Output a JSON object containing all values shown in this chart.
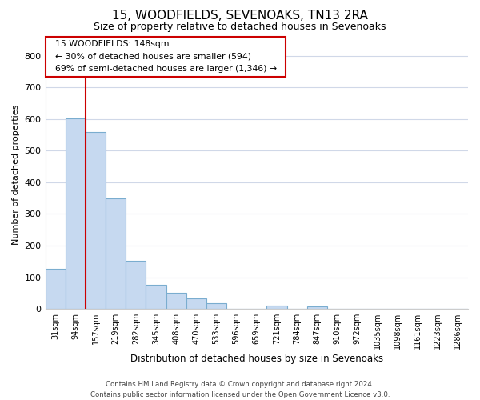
{
  "title": "15, WOODFIELDS, SEVENOAKS, TN13 2RA",
  "subtitle": "Size of property relative to detached houses in Sevenoaks",
  "xlabel": "Distribution of detached houses by size in Sevenoaks",
  "ylabel": "Number of detached properties",
  "bar_labels": [
    "31sqm",
    "94sqm",
    "157sqm",
    "219sqm",
    "282sqm",
    "345sqm",
    "408sqm",
    "470sqm",
    "533sqm",
    "596sqm",
    "659sqm",
    "721sqm",
    "784sqm",
    "847sqm",
    "910sqm",
    "972sqm",
    "1035sqm",
    "1098sqm",
    "1161sqm",
    "1223sqm",
    "1286sqm"
  ],
  "bar_values": [
    127,
    601,
    558,
    349,
    152,
    75,
    51,
    34,
    18,
    0,
    0,
    10,
    0,
    8,
    0,
    0,
    0,
    0,
    0,
    0,
    0
  ],
  "bar_color": "#c6d9f0",
  "bar_edge_color": "#7aadcf",
  "ylim": [
    0,
    850
  ],
  "yticks": [
    0,
    100,
    200,
    300,
    400,
    500,
    600,
    700,
    800
  ],
  "property_line_color": "#cc0000",
  "annotation_title": "15 WOODFIELDS: 148sqm",
  "annotation_line1": "← 30% of detached houses are smaller (594)",
  "annotation_line2": "69% of semi-detached houses are larger (1,346) →",
  "footer_line1": "Contains HM Land Registry data © Crown copyright and database right 2024.",
  "footer_line2": "Contains public sector information licensed under the Open Government Licence v3.0.",
  "background_color": "#ffffff",
  "grid_color": "#d0d8e8"
}
